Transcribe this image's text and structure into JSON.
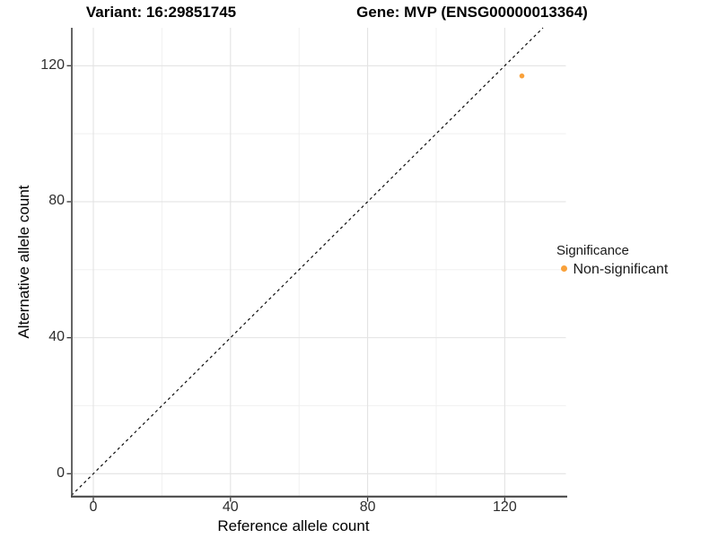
{
  "header": {
    "variant_title": "Variant: 16:29851745",
    "gene_title": "Gene: MVP (ENSG00000013364)"
  },
  "axes": {
    "x": {
      "label": "Reference allele count",
      "tick_labels": [
        "0",
        "40",
        "80",
        "120"
      ]
    },
    "y": {
      "label": "Alternative allele count",
      "tick_labels": [
        "0",
        "40",
        "80",
        "120"
      ]
    }
  },
  "legend": {
    "title": "Significance",
    "items": [
      {
        "label": "Non-significant",
        "color": "#F9A13A"
      }
    ]
  },
  "colors": {
    "background": "#ffffff",
    "grid_major": "#e3e3e3",
    "grid_minor": "#efefef",
    "axis_line": "#4a4a4a",
    "tick_mark": "#333333",
    "reference_line": "#0d0d0d",
    "point": "#F9A13A"
  },
  "chart_data": {
    "type": "scatter",
    "title_left": "Variant: 16:29851745",
    "title_right": "Gene: MVP (ENSG00000013364)",
    "xlabel": "Reference allele count",
    "ylabel": "Alternative allele count",
    "x_ticks": [
      0,
      40,
      80,
      120
    ],
    "y_ticks": [
      0,
      40,
      80,
      120
    ],
    "xlim": [
      -6.4,
      137.8
    ],
    "ylim": [
      -6.7,
      131.2
    ],
    "grid": "major+minor",
    "legend_position": "right",
    "series": [
      {
        "name": "Non-significant",
        "color": "#F9A13A",
        "points": [
          {
            "x": 125,
            "y": 117
          }
        ]
      }
    ],
    "reference_line": {
      "kind": "identity",
      "equation": "y = x",
      "style": "dashed",
      "color": "#0d0d0d"
    }
  }
}
